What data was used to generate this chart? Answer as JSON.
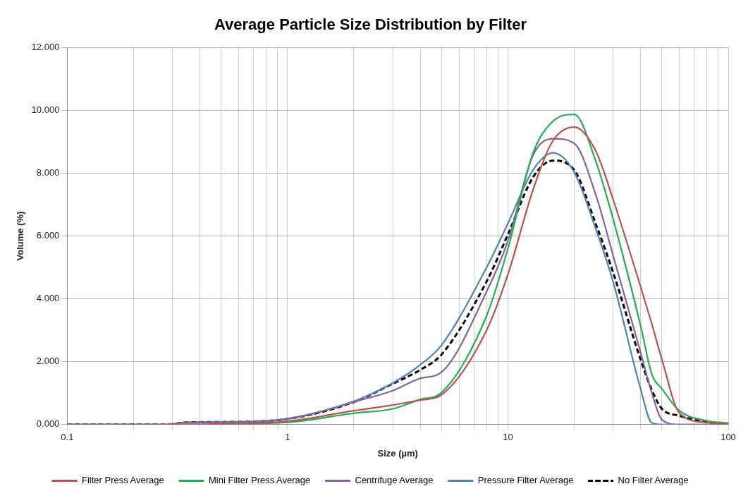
{
  "chart_data": {
    "type": "line",
    "title": "Average Particle Size Distribution by Filter",
    "xlabel": "Size (µm)",
    "ylabel": "Volume (%)",
    "x": [
      0.1,
      0.28,
      0.35,
      0.5,
      1,
      2,
      3,
      4,
      5,
      8,
      10,
      13,
      16,
      20,
      25,
      30,
      40,
      45,
      50,
      60,
      80,
      100
    ],
    "series": [
      {
        "name": "Filter Press Average",
        "color": "#c0504d",
        "values": [
          0,
          0,
          0.01,
          0.02,
          0.1,
          0.44,
          0.62,
          0.78,
          0.95,
          3.0,
          4.78,
          7.47,
          9.03,
          9.47,
          8.72,
          7.17,
          4.39,
          3.2,
          2.07,
          0.37,
          0.06,
          0.02
        ]
      },
      {
        "name": "Mini Filter Press Average",
        "color": "#1fb050",
        "values": [
          null,
          null,
          null,
          0.02,
          0.07,
          0.36,
          0.5,
          0.8,
          1.02,
          3.46,
          5.6,
          8.64,
          9.65,
          9.87,
          8.4,
          6.55,
          3.15,
          1.6,
          1.14,
          0.44,
          0.12,
          0.05
        ]
      },
      {
        "name": "Centrifuge Average",
        "color": "#8064a2",
        "values": [
          0,
          0,
          0.06,
          0.07,
          0.17,
          0.72,
          1.08,
          1.47,
          1.67,
          4.23,
          5.85,
          8.57,
          9.1,
          8.95,
          7.33,
          5.39,
          2.3,
          1.0,
          0.15,
          0,
          0,
          0
        ]
      },
      {
        "name": "Pressure Filter Average",
        "color": "#4f81bd",
        "values": [
          0,
          0,
          0.07,
          0.08,
          0.19,
          0.74,
          1.32,
          1.9,
          2.53,
          5.0,
          6.4,
          8.1,
          8.65,
          8.03,
          6.24,
          4.55,
          1.14,
          0.05,
          0,
          0,
          0,
          0
        ]
      },
      {
        "name": "No Filter Average",
        "color": "#000000",
        "line_style": "dashed",
        "values": [
          0,
          0,
          0.07,
          0.08,
          0.18,
          0.72,
          1.3,
          1.74,
          2.23,
          4.55,
          6.05,
          7.87,
          8.4,
          8.1,
          6.4,
          4.85,
          2.07,
          1.1,
          0.5,
          0.28,
          0.08,
          0.02
        ]
      }
    ],
    "log": "x",
    "xlim": [
      0.1,
      100
    ],
    "xticks": [
      0.1,
      {
        "value": 0.2,
        "label": null
      },
      {
        "value": 0.3,
        "label": null
      },
      {
        "value": 0.4,
        "label": null
      },
      {
        "value": 0.5,
        "label": null
      },
      {
        "value": 0.6,
        "label": null
      },
      {
        "value": 0.7,
        "label": null
      },
      {
        "value": 0.8,
        "label": null
      },
      {
        "value": 0.9,
        "label": null
      },
      1,
      {
        "value": 2,
        "label": null
      },
      {
        "value": 3,
        "label": null
      },
      {
        "value": 4,
        "label": null
      },
      {
        "value": 5,
        "label": null
      },
      {
        "value": 6,
        "label": null
      },
      {
        "value": 7,
        "label": null
      },
      {
        "value": 8,
        "label": null
      },
      {
        "value": 9,
        "label": null
      },
      10,
      {
        "value": 20,
        "label": null
      },
      {
        "value": 30,
        "label": null
      },
      {
        "value": 40,
        "label": null
      },
      {
        "value": 50,
        "label": null
      },
      {
        "value": 60,
        "label": null
      },
      {
        "value": 70,
        "label": null
      },
      {
        "value": 80,
        "label": null
      },
      {
        "value": 90,
        "label": null
      },
      100
    ],
    "ylim": [
      0,
      12
    ],
    "yticks": [
      {
        "value": 0,
        "label": "0.000"
      },
      {
        "value": 2,
        "label": "2.000"
      },
      {
        "value": 4,
        "label": "4.000"
      },
      {
        "value": 6,
        "label": "6.000"
      },
      {
        "value": 8,
        "label": "8.000"
      },
      {
        "value": 10,
        "label": "10.000"
      },
      {
        "value": 12,
        "label": "12.000"
      }
    ],
    "grid": true,
    "legend": "bottom",
    "marker": "none",
    "line_style": "solid"
  }
}
